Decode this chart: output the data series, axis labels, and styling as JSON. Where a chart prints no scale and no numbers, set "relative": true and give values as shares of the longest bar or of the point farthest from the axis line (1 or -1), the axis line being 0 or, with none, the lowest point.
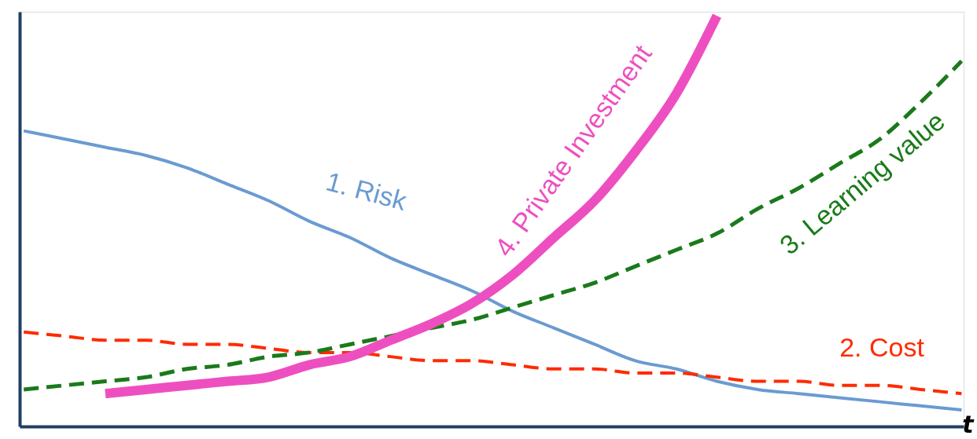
{
  "chart_data": {
    "type": "line",
    "relative": true,
    "xlabel": "t",
    "grid": false,
    "marker": "none",
    "categories": [
      null,
      null,
      null,
      null,
      null,
      null,
      null,
      null,
      null,
      null,
      null,
      null,
      null,
      null,
      null,
      null,
      null,
      null,
      null,
      null,
      null,
      null,
      null,
      null
    ],
    "series": [
      {
        "name": "1. Risk",
        "color": "#6a9bd1",
        "line_style": "solid",
        "values": [
          0.72,
          0.7,
          0.68,
          0.66,
          0.63,
          0.59,
          0.55,
          0.5,
          0.46,
          0.41,
          0.37,
          0.33,
          0.28,
          0.24,
          0.2,
          0.16,
          0.14,
          0.11,
          0.09,
          0.08,
          0.07,
          0.06,
          0.05,
          0.04
        ]
      },
      {
        "name": "2. Cost",
        "color": "#ff2a00",
        "line_style": "dashed",
        "values": [
          0.23,
          0.22,
          0.21,
          0.21,
          0.2,
          0.2,
          0.19,
          0.18,
          0.18,
          0.17,
          0.16,
          0.16,
          0.15,
          0.14,
          0.14,
          0.13,
          0.13,
          0.12,
          0.11,
          0.11,
          0.1,
          0.1,
          0.09,
          0.08
        ]
      },
      {
        "name": "3. Learning value",
        "color": "#1a7a1a",
        "line_style": "dashed",
        "values": [
          0.09,
          0.1,
          0.11,
          0.12,
          0.14,
          0.15,
          0.17,
          0.18,
          0.2,
          0.22,
          0.24,
          0.26,
          0.29,
          0.32,
          0.35,
          0.39,
          0.43,
          0.47,
          0.53,
          0.58,
          0.64,
          0.7,
          0.79,
          0.89
        ]
      },
      {
        "name": "4. Private Investment",
        "color": "#ee4fc0",
        "line_style": "solid",
        "values": [
          null,
          null,
          0.08,
          0.09,
          0.1,
          0.11,
          0.12,
          0.15,
          0.17,
          0.21,
          0.25,
          0.3,
          0.37,
          0.46,
          0.55,
          0.67,
          0.81,
          1.0,
          null,
          null,
          null,
          null,
          null,
          null
        ]
      }
    ]
  }
}
